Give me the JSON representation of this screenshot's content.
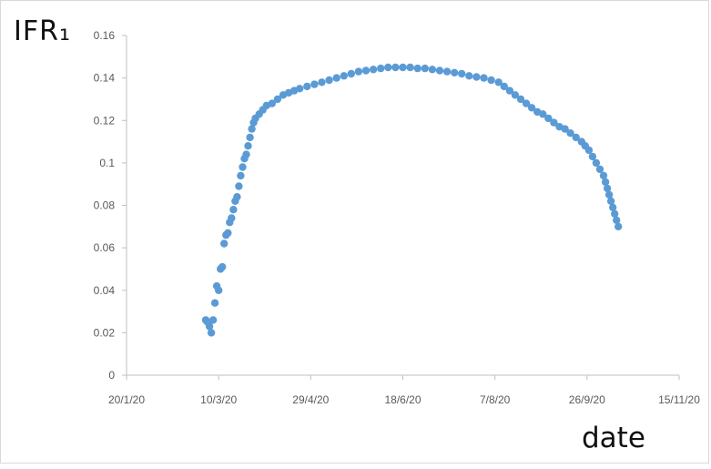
{
  "chart_data": {
    "type": "scatter",
    "ylabel": "IFR₁",
    "xlabel": "date",
    "ylim": [
      0,
      0.16
    ],
    "xlim": [
      "2020-01-20",
      "2020-11-15"
    ],
    "yticks": [
      "0",
      "0.02",
      "0.04",
      "0.06",
      "0.08",
      "0.1",
      "0.12",
      "0.14",
      "0.16"
    ],
    "xticks": [
      {
        "date": "2020-01-20",
        "label": "20/1/20"
      },
      {
        "date": "2020-03-10",
        "label": "10/3/20"
      },
      {
        "date": "2020-04-29",
        "label": "29/4/20"
      },
      {
        "date": "2020-06-18",
        "label": "18/6/20"
      },
      {
        "date": "2020-08-07",
        "label": "7/8/20"
      },
      {
        "date": "2020-09-26",
        "label": "26/9/20"
      },
      {
        "date": "2020-11-15",
        "label": "15/11/20"
      }
    ],
    "marker_color": "#5b9bd5",
    "grid": false,
    "series": [
      {
        "points": [
          [
            "2020-03-03",
            0.026
          ],
          [
            "2020-03-04",
            0.025
          ],
          [
            "2020-03-05",
            0.023
          ],
          [
            "2020-03-06",
            0.02
          ],
          [
            "2020-03-07",
            0.026
          ],
          [
            "2020-03-08",
            0.034
          ],
          [
            "2020-03-09",
            0.042
          ],
          [
            "2020-03-10",
            0.04
          ],
          [
            "2020-03-11",
            0.05
          ],
          [
            "2020-03-12",
            0.051
          ],
          [
            "2020-03-13",
            0.062
          ],
          [
            "2020-03-14",
            0.066
          ],
          [
            "2020-03-15",
            0.067
          ],
          [
            "2020-03-16",
            0.072
          ],
          [
            "2020-03-17",
            0.074
          ],
          [
            "2020-03-18",
            0.078
          ],
          [
            "2020-03-19",
            0.082
          ],
          [
            "2020-03-20",
            0.084
          ],
          [
            "2020-03-21",
            0.089
          ],
          [
            "2020-03-22",
            0.094
          ],
          [
            "2020-03-23",
            0.098
          ],
          [
            "2020-03-24",
            0.102
          ],
          [
            "2020-03-25",
            0.104
          ],
          [
            "2020-03-26",
            0.108
          ],
          [
            "2020-03-27",
            0.112
          ],
          [
            "2020-03-28",
            0.116
          ],
          [
            "2020-03-29",
            0.119
          ],
          [
            "2020-03-30",
            0.121
          ],
          [
            "2020-04-01",
            0.123
          ],
          [
            "2020-04-03",
            0.125
          ],
          [
            "2020-04-05",
            0.127
          ],
          [
            "2020-04-08",
            0.128
          ],
          [
            "2020-04-11",
            0.13
          ],
          [
            "2020-04-14",
            0.132
          ],
          [
            "2020-04-17",
            0.133
          ],
          [
            "2020-04-20",
            0.134
          ],
          [
            "2020-04-23",
            0.135
          ],
          [
            "2020-04-27",
            0.136
          ],
          [
            "2020-05-01",
            0.137
          ],
          [
            "2020-05-05",
            0.138
          ],
          [
            "2020-05-09",
            0.139
          ],
          [
            "2020-05-13",
            0.14
          ],
          [
            "2020-05-17",
            0.141
          ],
          [
            "2020-05-21",
            0.142
          ],
          [
            "2020-05-25",
            0.143
          ],
          [
            "2020-05-29",
            0.1435
          ],
          [
            "2020-06-02",
            0.144
          ],
          [
            "2020-06-06",
            0.1445
          ],
          [
            "2020-06-10",
            0.145
          ],
          [
            "2020-06-14",
            0.145
          ],
          [
            "2020-06-18",
            0.145
          ],
          [
            "2020-06-22",
            0.145
          ],
          [
            "2020-06-26",
            0.1445
          ],
          [
            "2020-06-30",
            0.1445
          ],
          [
            "2020-07-04",
            0.144
          ],
          [
            "2020-07-08",
            0.1435
          ],
          [
            "2020-07-12",
            0.143
          ],
          [
            "2020-07-16",
            0.1425
          ],
          [
            "2020-07-20",
            0.142
          ],
          [
            "2020-07-24",
            0.141
          ],
          [
            "2020-07-28",
            0.1405
          ],
          [
            "2020-08-01",
            0.14
          ],
          [
            "2020-08-05",
            0.139
          ],
          [
            "2020-08-09",
            0.138
          ],
          [
            "2020-08-12",
            0.136
          ],
          [
            "2020-08-15",
            0.134
          ],
          [
            "2020-08-18",
            0.132
          ],
          [
            "2020-08-21",
            0.13
          ],
          [
            "2020-08-24",
            0.128
          ],
          [
            "2020-08-27",
            0.126
          ],
          [
            "2020-08-30",
            0.124
          ],
          [
            "2020-09-02",
            0.123
          ],
          [
            "2020-09-05",
            0.121
          ],
          [
            "2020-09-08",
            0.119
          ],
          [
            "2020-09-11",
            0.117
          ],
          [
            "2020-09-14",
            0.116
          ],
          [
            "2020-09-17",
            0.114
          ],
          [
            "2020-09-20",
            0.112
          ],
          [
            "2020-09-23",
            0.11
          ],
          [
            "2020-09-25",
            0.108
          ],
          [
            "2020-09-27",
            0.106
          ],
          [
            "2020-09-29",
            0.103
          ],
          [
            "2020-10-01",
            0.1
          ],
          [
            "2020-10-03",
            0.097
          ],
          [
            "2020-10-05",
            0.094
          ],
          [
            "2020-10-06",
            0.091
          ],
          [
            "2020-10-07",
            0.088
          ],
          [
            "2020-10-08",
            0.085
          ],
          [
            "2020-10-09",
            0.082
          ],
          [
            "2020-10-10",
            0.079
          ],
          [
            "2020-10-11",
            0.076
          ],
          [
            "2020-10-12",
            0.073
          ],
          [
            "2020-10-13",
            0.07
          ]
        ]
      }
    ]
  }
}
